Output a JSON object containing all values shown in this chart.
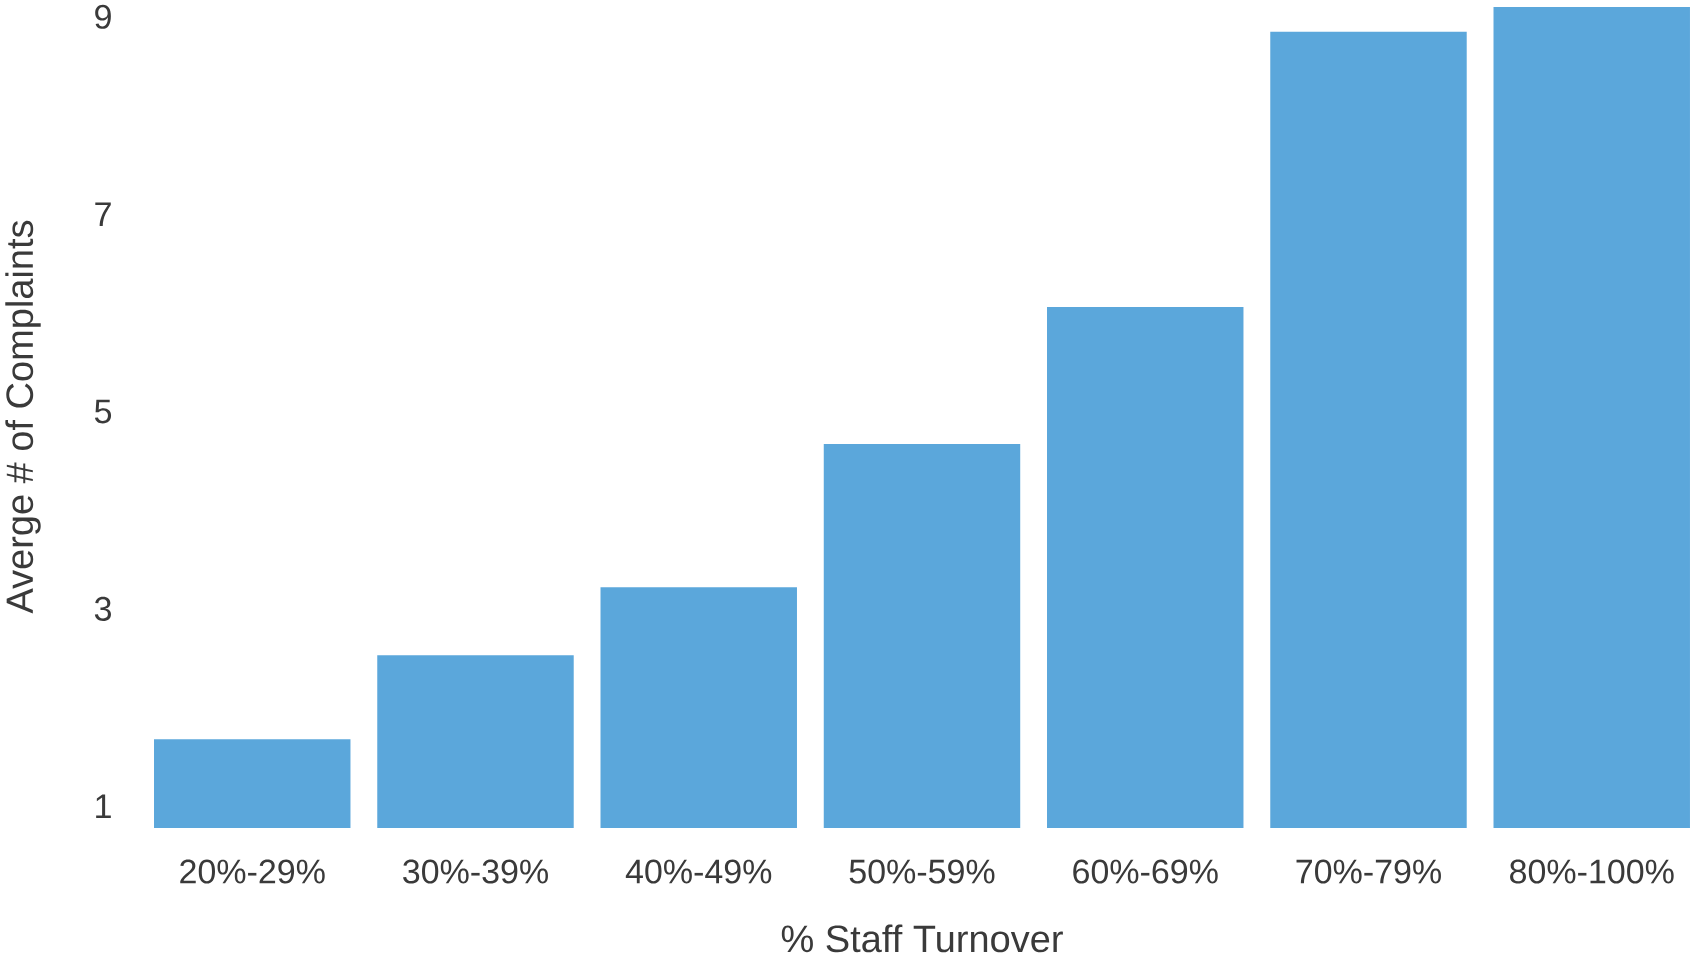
{
  "chart_data": {
    "type": "bar",
    "xlabel": "% Staff Turnover",
    "ylabel": "Averge # of Complaints",
    "categories": [
      "20%-29%",
      "30%-39%",
      "40%-49%",
      "50%-59%",
      "60%-69%",
      "70%-79%",
      "80%-100%"
    ],
    "values": [
      1.68,
      2.53,
      3.22,
      4.67,
      6.06,
      8.85,
      9.1
    ],
    "color": "#5ba7db",
    "ylim": [
      0.78,
      9.12
    ],
    "yticks": [
      1,
      3,
      5,
      7,
      9
    ],
    "grid": false
  }
}
